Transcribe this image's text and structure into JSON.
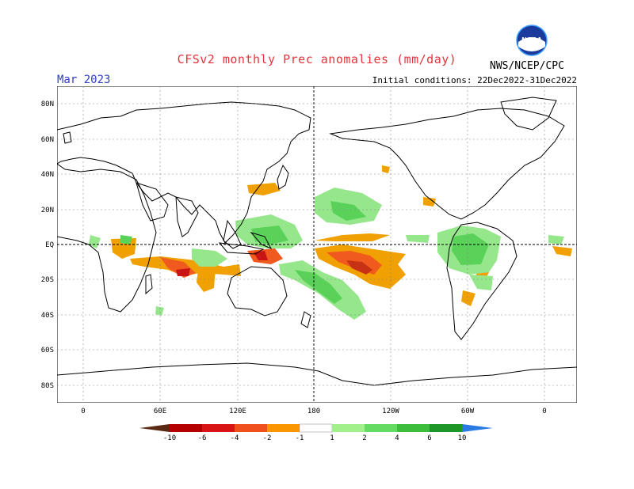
{
  "header": {
    "title": "CFSv2 monthly Prec anomalies (mm/day)",
    "month": "Mar 2023",
    "initial_conditions": "Initial conditions: 22Dec2022-31Dec2022",
    "agency": "NWS/NCEP/CPC",
    "logo_text": "NOAA"
  },
  "map": {
    "lat_labels": [
      "80N",
      "60N",
      "40N",
      "20N",
      "EQ",
      "20S",
      "40S",
      "60S",
      "80S"
    ],
    "lon_labels": [
      "0",
      "60E",
      "120E",
      "180",
      "120W",
      "60W",
      "0"
    ]
  },
  "colorbar": {
    "labels": [
      "-10",
      "-6",
      "-4",
      "-2",
      "-1",
      "1",
      "2",
      "4",
      "6",
      "10"
    ],
    "colors": [
      "#5a2a14",
      "#b40000",
      "#d81414",
      "#f0501e",
      "#fa9600",
      "#f4a000",
      "#ffffff",
      "#a0f08c",
      "#64dc64",
      "#3cbe3c",
      "#1e9628",
      "#148c1e",
      "#2a7ae6"
    ]
  },
  "colors": {
    "title": "#e8323c",
    "month": "#3040c0",
    "dry_light": "#f0a000",
    "dry_mid": "#f05a1e",
    "dry_dark": "#c81414",
    "wet_light": "#96e68c",
    "wet_mid": "#5ad25a"
  }
}
